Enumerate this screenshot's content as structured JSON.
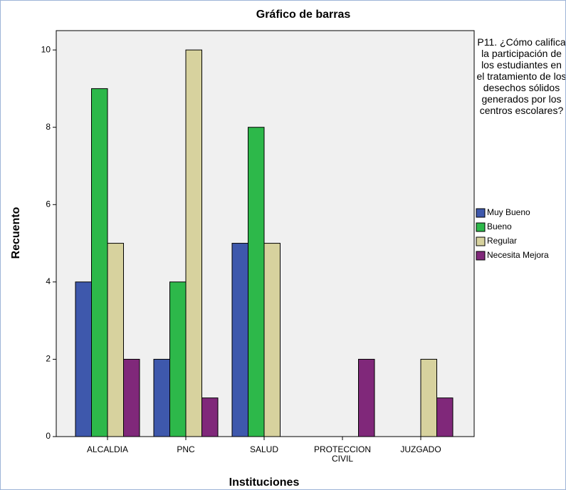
{
  "chart_data": {
    "type": "bar",
    "title": "Gráfico de barras",
    "x_label": "Instituciones",
    "y_label": "Recuento",
    "categories": [
      "ALCALDIA",
      "PNC",
      "SALUD",
      "PROTECCION CIVIL",
      "JUZGADO"
    ],
    "legend_title": "P11. ¿Cómo califica la participación de los estudiantes en el tratamiento de los desechos sólidos generados por los centros escolares?",
    "series": [
      {
        "name": "Muy Bueno",
        "color": "#3e58ac",
        "values": [
          4,
          2,
          5,
          0,
          0
        ]
      },
      {
        "name": "Bueno",
        "color": "#2db84a",
        "values": [
          9,
          4,
          8,
          0,
          0
        ]
      },
      {
        "name": "Regular",
        "color": "#d7d29e",
        "values": [
          5,
          10,
          5,
          0,
          2
        ]
      },
      {
        "name": "Necesita Mejora",
        "color": "#80287a",
        "values": [
          2,
          1,
          0,
          2,
          1
        ]
      }
    ],
    "ylim": [
      0,
      10.5
    ],
    "yticks": [
      0,
      2,
      4,
      6,
      8,
      10
    ],
    "legend": "right"
  }
}
